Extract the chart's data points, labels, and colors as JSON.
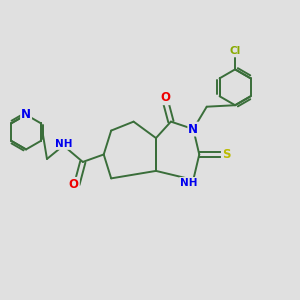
{
  "bg_color": "#e0e0e0",
  "bond_color": "#3a6e3a",
  "bond_width": 1.4,
  "atom_colors": {
    "N": "#0000ee",
    "O": "#ee0000",
    "S": "#bbbb00",
    "Cl": "#88aa00",
    "H": "#666666",
    "C": "#3a6e3a"
  },
  "font_size": 7.5,
  "fig_size": [
    3.0,
    3.0
  ],
  "dpi": 100,
  "xlim": [
    0,
    10
  ],
  "ylim": [
    2,
    8.5
  ]
}
